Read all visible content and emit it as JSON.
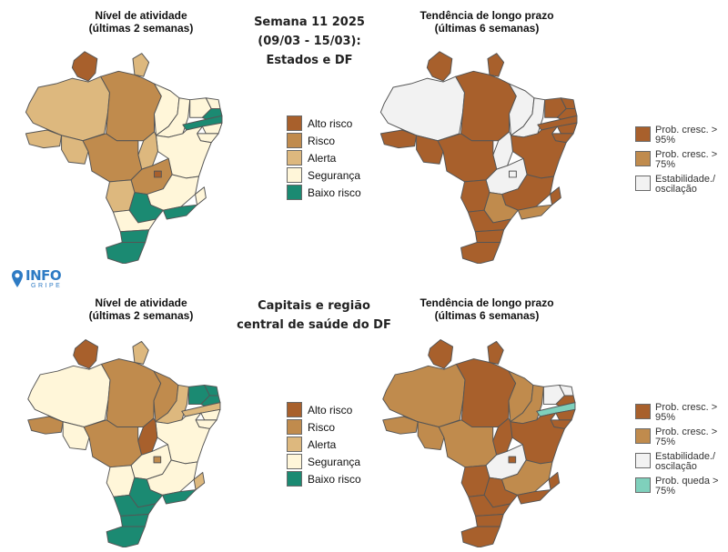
{
  "colors": {
    "alto_risco": "#a8602c",
    "risco": "#c08b4d",
    "alerta": "#ddb87e",
    "seguranca": "#fff6d9",
    "baixo_risco": "#1b8a72",
    "prob_cresc_95": "#a8602c",
    "prob_cresc_75": "#c08b4d",
    "estabilidade": "#f2f2f2",
    "prob_queda_75": "#7fd0bc",
    "border": "#555555",
    "logo_blue": "#2e7bc4"
  },
  "top": {
    "center_title": [
      "Semana 11 2025",
      "(09/03 - 15/03):",
      "Estados e DF"
    ],
    "left_map": {
      "title": [
        "Nível de atividade",
        "(últimas 2 semanas)"
      ]
    },
    "right_map": {
      "title": [
        "Tendência de longo prazo",
        "(últimas 6 semanas)"
      ]
    },
    "legend_activity": [
      "Alto risco",
      "Risco",
      "Alerta",
      "Segurança",
      "Baixo risco"
    ],
    "legend_trend": [
      "Prob. cresc. > 95%",
      "Prob. cresc. > 75%",
      "Estabilidade./ oscilação"
    ]
  },
  "bottom": {
    "center_title": [
      "Capitais e região",
      "central de saúde do DF"
    ],
    "left_map": {
      "title": [
        "Nível de atividade",
        "(últimas 2 semanas)"
      ]
    },
    "right_map": {
      "title": [
        "Tendência de longo prazo",
        "(últimas 6 semanas)"
      ]
    },
    "legend_activity": [
      "Alto risco",
      "Risco",
      "Alerta",
      "Segurança",
      "Baixo risco"
    ],
    "legend_trend": [
      "Prob. cresc. > 95%",
      "Prob. cresc. > 75%",
      "Estabilidade./ oscilação",
      "Prob. queda > 75%"
    ]
  },
  "logo": {
    "main": "INFO",
    "sub": "GRIPE",
    "icon": "map-pin-icon"
  },
  "maps": {
    "top_activity": {
      "RR": "alto_risco",
      "AP": "alerta",
      "AM": "alerta",
      "PA": "risco",
      "AC": "alerta",
      "RO": "alerta",
      "TO": "alerta",
      "MT": "risco",
      "GO": "risco",
      "DF": "alto_risco",
      "MS": "alerta",
      "MA": "seguranca",
      "PI": "seguranca",
      "BA": "seguranca",
      "MG": "seguranca",
      "CE": "seguranca",
      "RN": "seguranca",
      "PB": "baixo_risco",
      "PE": "baixo_risco",
      "AL": "seguranca",
      "SE": "seguranca",
      "ES": "seguranca",
      "RJ": "baixo_risco",
      "SP": "baixo_risco",
      "PR": "seguranca",
      "SC": "baixo_risco",
      "RS": "baixo_risco"
    },
    "top_trend": {
      "RR": "prob_cresc_95",
      "AP": "prob_cresc_95",
      "AM": "estabilidade",
      "PA": "prob_cresc_95",
      "AC": "prob_cresc_95",
      "RO": "prob_cresc_95",
      "TO": "estabilidade",
      "MT": "prob_cresc_95",
      "GO": "estabilidade",
      "DF": "estabilidade",
      "MS": "prob_cresc_95",
      "MA": "estabilidade",
      "PI": "estabilidade",
      "BA": "prob_cresc_95",
      "MG": "prob_cresc_95",
      "CE": "prob_cresc_95",
      "RN": "prob_cresc_95",
      "PB": "prob_cresc_95",
      "PE": "prob_cresc_95",
      "AL": "prob_cresc_95",
      "SE": "prob_cresc_95",
      "ES": "prob_cresc_95",
      "RJ": "prob_cresc_75",
      "SP": "prob_cresc_75",
      "PR": "prob_cresc_95",
      "SC": "prob_cresc_95",
      "RS": "prob_cresc_95"
    },
    "bottom_activity": {
      "RR": "alto_risco",
      "AP": "alerta",
      "AM": "seguranca",
      "PA": "risco",
      "AC": "risco",
      "RO": "seguranca",
      "TO": "alto_risco",
      "MT": "risco",
      "GO": "seguranca",
      "DF": "risco",
      "MS": "seguranca",
      "MA": "risco",
      "PI": "alerta",
      "BA": "seguranca",
      "MG": "seguranca",
      "CE": "baixo_risco",
      "RN": "baixo_risco",
      "PB": "baixo_risco",
      "PE": "alerta",
      "AL": "seguranca",
      "SE": "seguranca",
      "ES": "alerta",
      "RJ": "baixo_risco",
      "SP": "baixo_risco",
      "PR": "baixo_risco",
      "SC": "baixo_risco",
      "RS": "baixo_risco"
    },
    "bottom_trend": {
      "RR": "prob_cresc_95",
      "AP": "prob_cresc_95",
      "AM": "prob_cresc_75",
      "PA": "prob_cresc_95",
      "AC": "prob_cresc_75",
      "RO": "prob_cresc_75",
      "TO": "prob_cresc_95",
      "MT": "prob_cresc_75",
      "GO": "estabilidade",
      "DF": "prob_cresc_95",
      "MS": "prob_cresc_95",
      "MA": "prob_cresc_75",
      "PI": "prob_cresc_75",
      "BA": "prob_cresc_95",
      "MG": "prob_cresc_75",
      "CE": "estabilidade",
      "RN": "estabilidade",
      "PB": "prob_cresc_95",
      "PE": "prob_queda_75",
      "AL": "prob_cresc_95",
      "SE": "prob_cresc_95",
      "ES": "prob_cresc_95",
      "RJ": "prob_cresc_95",
      "SP": "prob_cresc_95",
      "PR": "prob_cresc_95",
      "SC": "prob_cresc_95",
      "RS": "prob_cresc_95"
    }
  }
}
